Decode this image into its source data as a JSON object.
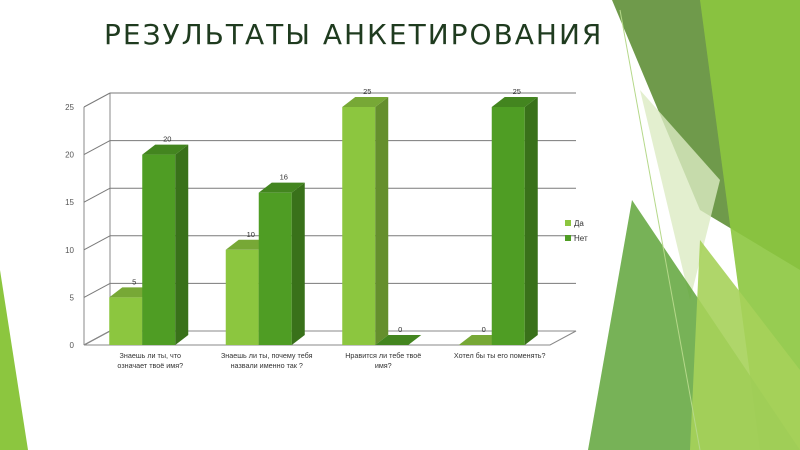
{
  "slide": {
    "title": "РЕЗУЛЬТАТЫ АНКЕТИРОВАНИЯ"
  },
  "colors": {
    "yes": "#8cc63f",
    "no": "#4f9d24",
    "accent_light": "#a6d15a",
    "accent_mid": "#78b43a",
    "accent_dark": "#5f8f2e"
  },
  "chart_data": {
    "type": "bar",
    "categories": [
      [
        "Знаешь ли ты, что",
        "означает твоё имя?"
      ],
      [
        "Знаешь ли ты, почему тебя",
        "назвали именно так ?"
      ],
      [
        "Нравится ли тебе твоё",
        "имя?"
      ],
      [
        "Хотел бы ты его поменять?"
      ]
    ],
    "series": [
      {
        "name": "Да",
        "values": [
          5,
          10,
          25,
          0
        ]
      },
      {
        "name": "Нет",
        "values": [
          20,
          16,
          0,
          25
        ]
      }
    ],
    "ylim": [
      0,
      25
    ],
    "yticks": [
      0,
      5,
      10,
      15,
      20,
      25
    ],
    "grid": true,
    "legend": "right",
    "three_d": true
  }
}
